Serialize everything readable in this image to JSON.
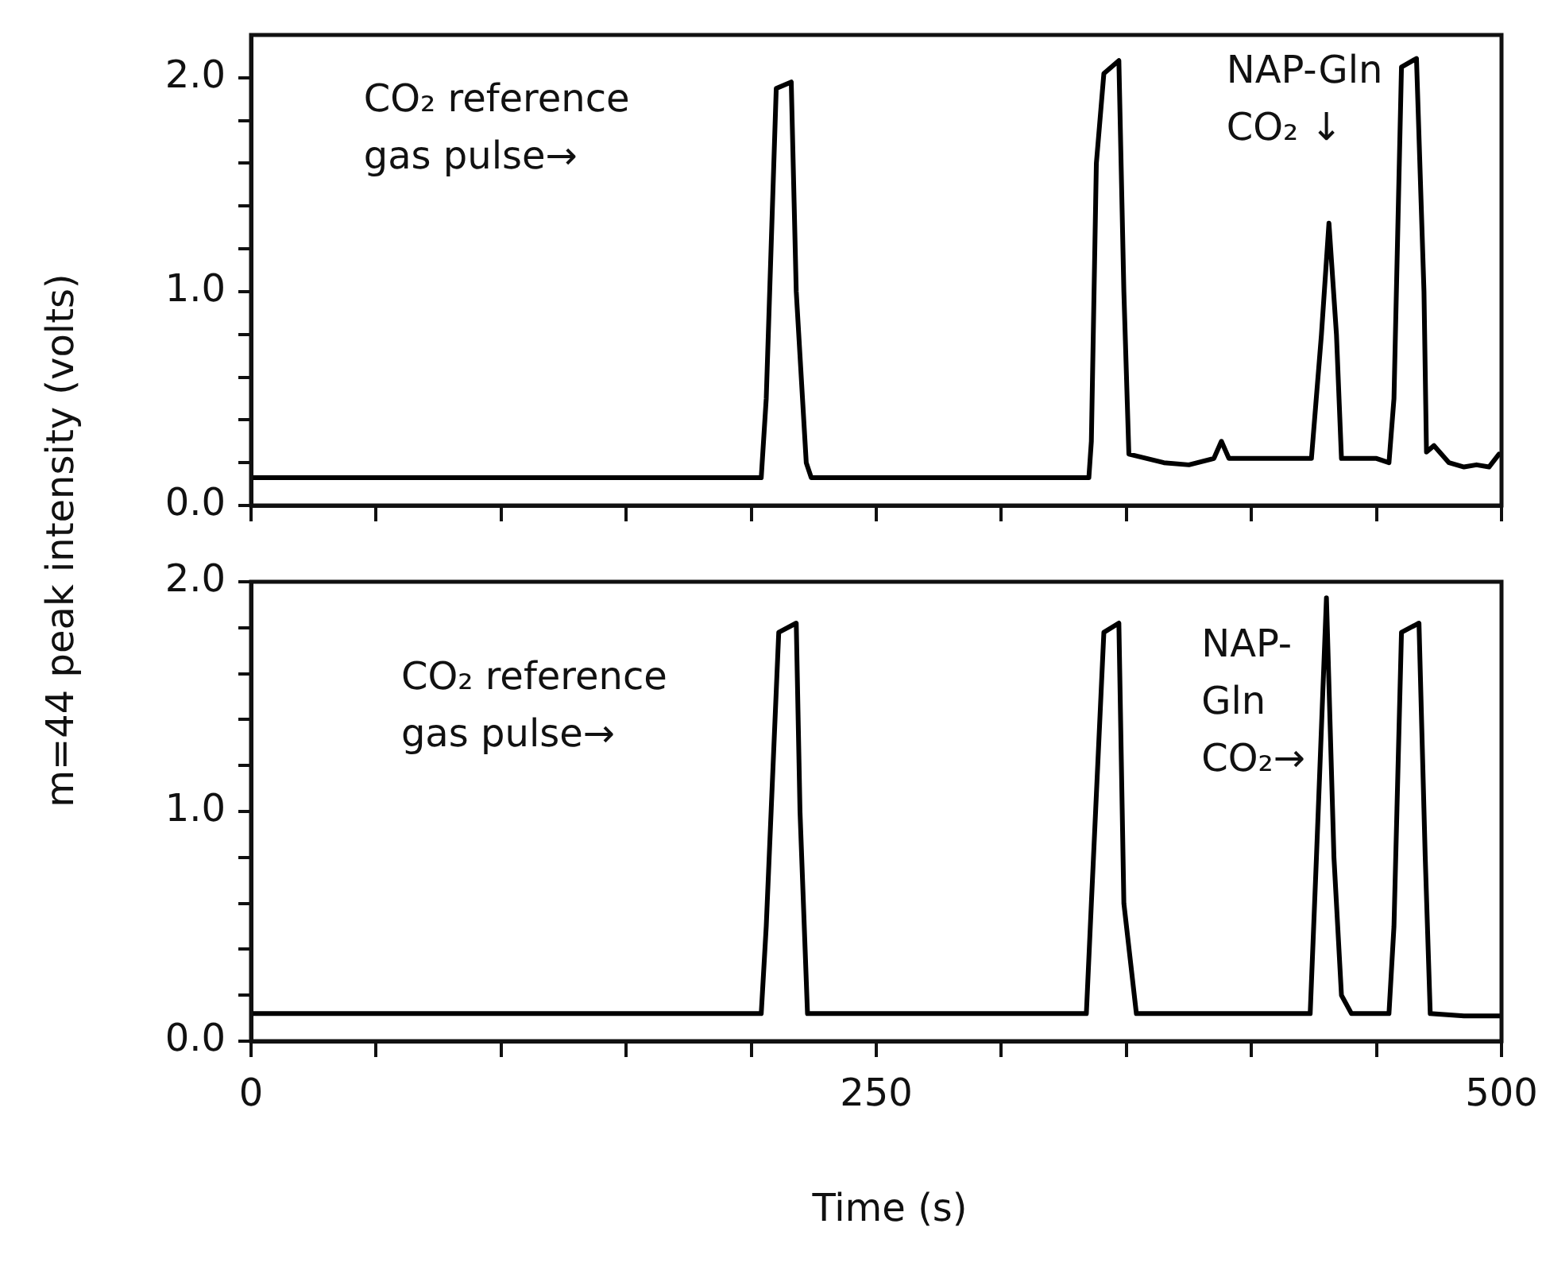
{
  "chart_data": [
    {
      "type": "line",
      "ylabel": "m=44   peak intensity  (volts)",
      "marker": "none",
      "grid": false,
      "legend": false,
      "tick_labels": "y",
      "xlim": [
        0,
        500
      ],
      "ylim": [
        0,
        2.2
      ],
      "xticks": [
        {
          "value": 0,
          "label": null
        },
        {
          "value": 50,
          "label": null
        },
        {
          "value": 100,
          "label": null
        },
        {
          "value": 150,
          "label": null
        },
        {
          "value": 200,
          "label": null
        },
        {
          "value": 250,
          "label": null
        },
        {
          "value": 300,
          "label": null
        },
        {
          "value": 350,
          "label": null
        },
        {
          "value": 400,
          "label": null
        },
        {
          "value": 450,
          "label": null
        },
        {
          "value": 500,
          "label": null
        }
      ],
      "yticks": [
        {
          "value": 0,
          "label": "0.0"
        },
        {
          "value": 0.2,
          "label": null
        },
        {
          "value": 0.4,
          "label": null
        },
        {
          "value": 0.6,
          "label": null
        },
        {
          "value": 0.8,
          "label": null
        },
        {
          "value": 1,
          "label": "1.0"
        },
        {
          "value": 1.2,
          "label": null
        },
        {
          "value": 1.4,
          "label": null
        },
        {
          "value": 1.6,
          "label": null
        },
        {
          "value": 1.8,
          "label": null
        },
        {
          "value": 2,
          "label": "2.0"
        }
      ],
      "annotations": [
        "CO₂ reference\ngas pulse→",
        "NAP-Gln\nCO₂ ↓"
      ],
      "series": [
        {
          "color": "#000000",
          "x": [
            0,
            204,
            206,
            210,
            216,
            218,
            222,
            224,
            335,
            336,
            338,
            341,
            347,
            349,
            351,
            365,
            375,
            385,
            388,
            391,
            420,
            424,
            428,
            431,
            434,
            436,
            450,
            455,
            457,
            460,
            466,
            469,
            470,
            473,
            479,
            485,
            490,
            495,
            499
          ],
          "values": [
            0.13,
            0.13,
            0.5,
            1.95,
            1.98,
            1.0,
            0.2,
            0.13,
            0.13,
            0.3,
            1.6,
            2.02,
            2.08,
            1.0,
            0.24,
            0.2,
            0.19,
            0.22,
            0.3,
            0.22,
            0.22,
            0.22,
            0.8,
            1.32,
            0.8,
            0.22,
            0.22,
            0.2,
            0.5,
            2.05,
            2.09,
            1.0,
            0.25,
            0.28,
            0.2,
            0.18,
            0.19,
            0.18,
            0.24
          ]
        }
      ]
    },
    {
      "type": "line",
      "xlabel": "Time (s)",
      "marker": "none",
      "grid": false,
      "legend": false,
      "xlim": [
        0,
        500
      ],
      "ylim": [
        0,
        2
      ],
      "xticks": [
        0,
        {
          "value": 50,
          "label": null
        },
        {
          "value": 100,
          "label": null
        },
        {
          "value": 150,
          "label": null
        },
        {
          "value": 200,
          "label": null
        },
        250,
        {
          "value": 300,
          "label": null
        },
        {
          "value": 350,
          "label": null
        },
        {
          "value": 400,
          "label": null
        },
        {
          "value": 450,
          "label": null
        },
        500
      ],
      "yticks": [
        {
          "value": 0,
          "label": "0.0"
        },
        {
          "value": 0.2,
          "label": null
        },
        {
          "value": 0.4,
          "label": null
        },
        {
          "value": 0.6,
          "label": null
        },
        {
          "value": 0.8,
          "label": null
        },
        {
          "value": 1,
          "label": "1.0"
        },
        {
          "value": 1.2,
          "label": null
        },
        {
          "value": 1.4,
          "label": null
        },
        {
          "value": 1.6,
          "label": null
        },
        {
          "value": 1.8,
          "label": null
        },
        {
          "value": 2,
          "label": "2.0"
        }
      ],
      "annotations": [
        "CO₂ reference\ngas pulse→",
        "NAP-\nGln\nCO₂→"
      ],
      "series": [
        {
          "color": "#000000",
          "x": [
            0,
            204,
            206,
            211,
            218,
            219.5,
            222.5,
            334,
            336,
            341,
            347,
            349,
            354,
            423.5,
            426,
            430,
            433,
            436,
            440,
            455,
            457,
            460,
            467,
            469.5,
            471.5,
            485,
            500
          ],
          "values": [
            0.12,
            0.12,
            0.5,
            1.78,
            1.82,
            1.0,
            0.12,
            0.12,
            0.6,
            1.78,
            1.82,
            0.6,
            0.12,
            0.12,
            0.8,
            1.93,
            0.8,
            0.2,
            0.12,
            0.12,
            0.5,
            1.78,
            1.82,
            0.8,
            0.12,
            0.11,
            0.11
          ]
        }
      ]
    }
  ]
}
